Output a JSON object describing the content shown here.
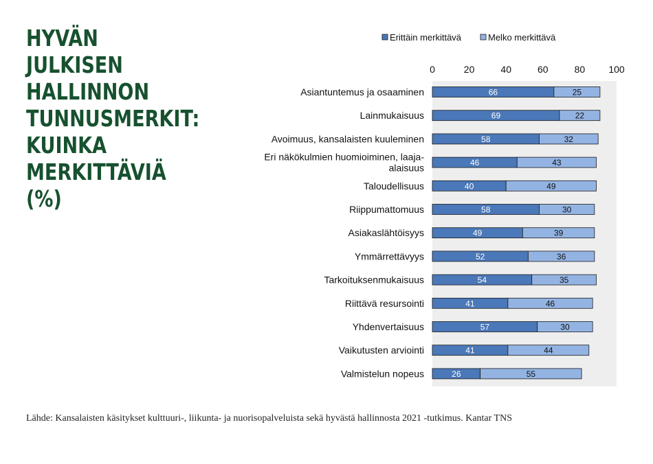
{
  "title": "HYVÄN JULKISEN\nHALLINNON\nTUNNUSMERKIT:\nKUINKA\nMERKITTÄVIÄ (%)",
  "colors": {
    "title": "#17512f",
    "series_dark": "#4a78b8",
    "series_light": "#93b4e3",
    "plot_bg": "#eeeeee",
    "border": "#1a1a1a"
  },
  "source": "Lähde: Kansalaisten käsitykset kulttuuri-, liikunta- ja nuorisopalveluista sekä hyvästä hallinnosta 2021 -tutkimus. Kantar TNS",
  "chart_data": {
    "type": "bar",
    "orientation": "horizontal",
    "stacked": true,
    "title": "HYVÄN JULKISEN HALLINNON TUNNUSMERKIT: KUINKA MERKITTÄVIÄ (%)",
    "xlim": [
      0,
      100
    ],
    "xticks": [
      0,
      20,
      40,
      60,
      80,
      100
    ],
    "legend_position": "top",
    "grid": false,
    "categories": [
      "Asiantuntemus ja osaaminen",
      "Lainmukaisuus",
      "Avoimuus, kansalaisten kuuleminen",
      "Eri näkökulmien huomioiminen, laaja-\nalaisuus",
      "Taloudellisuus",
      "Riippumattomuus",
      "Asiakaslähtöisyys",
      "Ymmärrettävyys",
      "Tarkoituksenmukaisuus",
      "Riittävä resursointi",
      "Yhdenvertaisuus",
      "Vaikutusten arviointi",
      "Valmistelun nopeus"
    ],
    "series": [
      {
        "name": "Erittäin merkittävä",
        "color": "#4a78b8",
        "values": [
          66,
          69,
          58,
          46,
          40,
          58,
          49,
          52,
          54,
          41,
          57,
          41,
          26
        ]
      },
      {
        "name": "Melko merkittävä",
        "color": "#93b4e3",
        "values": [
          25,
          22,
          32,
          43,
          49,
          30,
          39,
          36,
          35,
          46,
          30,
          44,
          55
        ]
      }
    ]
  }
}
